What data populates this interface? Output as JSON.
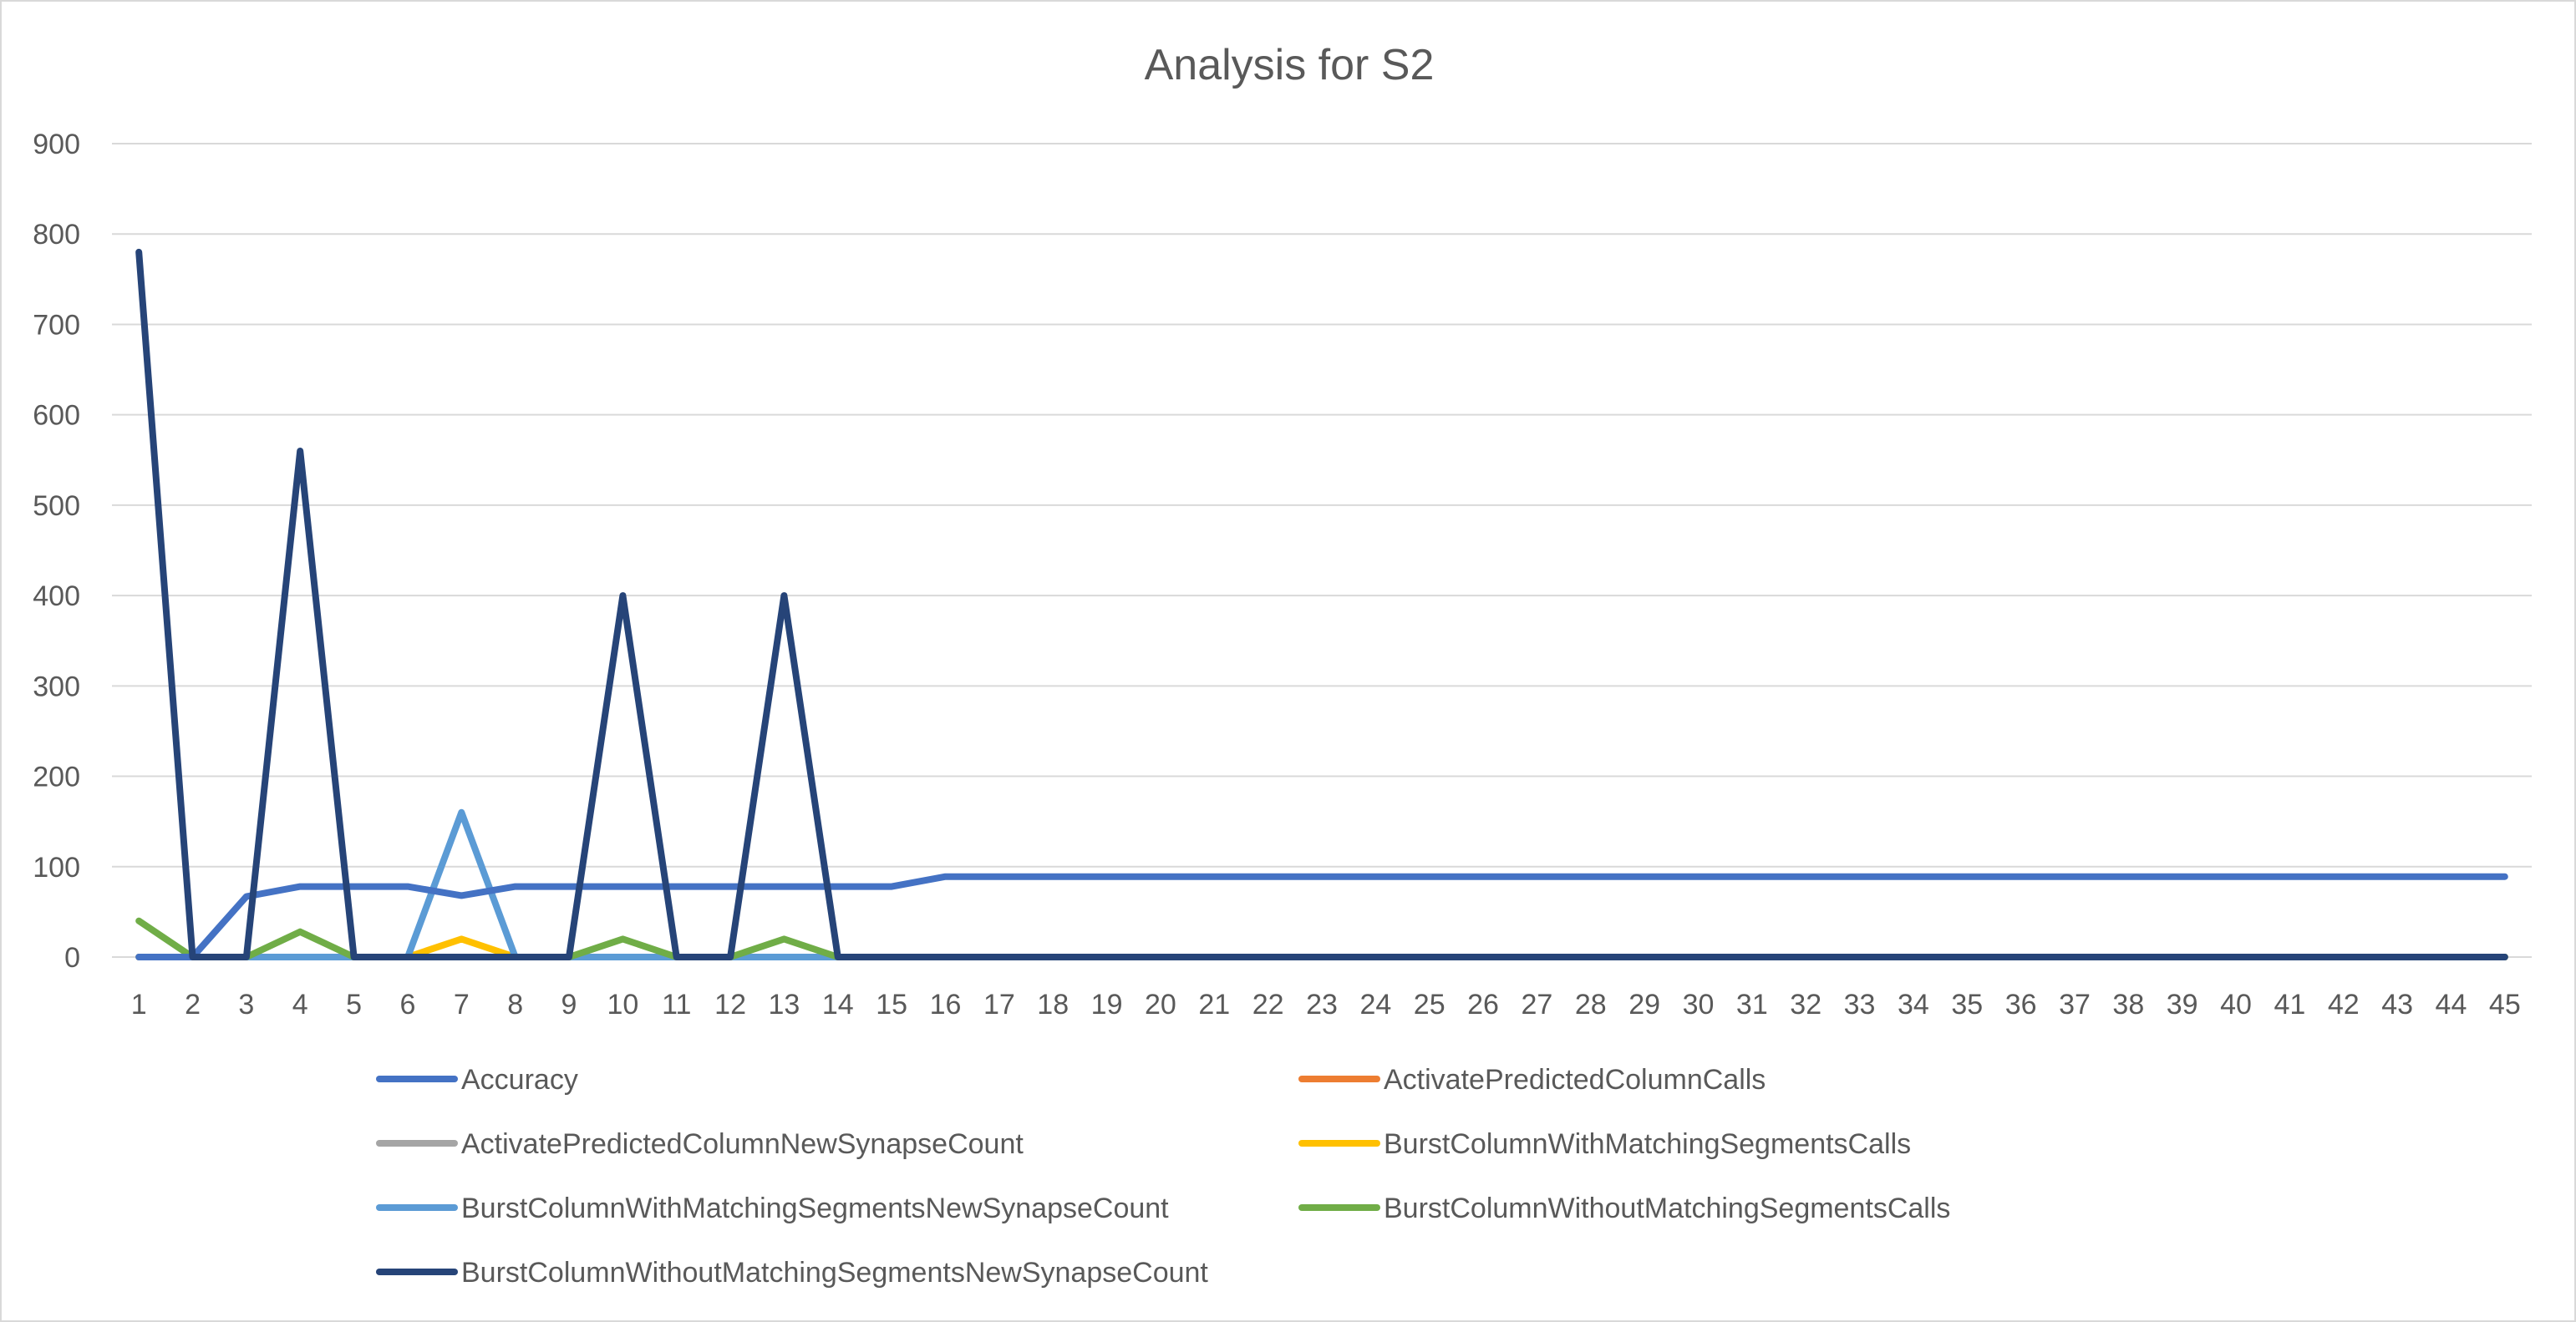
{
  "chart_data": {
    "type": "line",
    "title": "Analysis for S2",
    "xlabel": "",
    "ylabel": "",
    "ylim": [
      0,
      900
    ],
    "yticks": [
      "0",
      "100",
      "200",
      "300",
      "400",
      "500",
      "600",
      "700",
      "800",
      "900"
    ],
    "x": [
      1,
      2,
      3,
      4,
      5,
      6,
      7,
      8,
      9,
      10,
      11,
      12,
      13,
      14,
      15,
      16,
      17,
      18,
      19,
      20,
      21,
      22,
      23,
      24,
      25,
      26,
      27,
      28,
      29,
      30,
      31,
      32,
      33,
      34,
      35,
      36,
      37,
      38,
      39,
      40,
      41,
      42,
      43,
      44,
      45
    ],
    "grid": true,
    "legend_position": "bottom",
    "series": [
      {
        "name": "Accuracy",
        "color": "#4472C4",
        "values": [
          0,
          0,
          67,
          78,
          78,
          78,
          68,
          78,
          78,
          78,
          78,
          78,
          78,
          78,
          78,
          89,
          89,
          89,
          89,
          89,
          89,
          89,
          89,
          89,
          89,
          89,
          89,
          89,
          89,
          89,
          89,
          89,
          89,
          89,
          89,
          89,
          89,
          89,
          89,
          89,
          89,
          89,
          89,
          89,
          89
        ]
      },
      {
        "name": "ActivatePredictedColumnCalls",
        "color": "#ED7D31",
        "values": [
          0,
          0,
          0,
          0,
          0,
          0,
          0,
          0,
          0,
          0,
          0,
          0,
          0,
          0,
          0,
          0,
          0,
          0,
          0,
          0,
          0,
          0,
          0,
          0,
          0,
          0,
          0,
          0,
          0,
          0,
          0,
          0,
          0,
          0,
          0,
          0,
          0,
          0,
          0,
          0,
          0,
          0,
          0,
          0,
          0
        ]
      },
      {
        "name": "ActivatePredictedColumnNewSynapseCount",
        "color": "#A5A5A5",
        "values": [
          0,
          0,
          0,
          0,
          0,
          0,
          0,
          0,
          0,
          0,
          0,
          0,
          0,
          0,
          0,
          0,
          0,
          0,
          0,
          0,
          0,
          0,
          0,
          0,
          0,
          0,
          0,
          0,
          0,
          0,
          0,
          0,
          0,
          0,
          0,
          0,
          0,
          0,
          0,
          0,
          0,
          0,
          0,
          0,
          0
        ]
      },
      {
        "name": "BurstColumnWithMatchingSegmentsCalls",
        "color": "#FFC000",
        "values": [
          0,
          0,
          0,
          0,
          0,
          0,
          20,
          0,
          0,
          0,
          0,
          0,
          0,
          0,
          0,
          0,
          0,
          0,
          0,
          0,
          0,
          0,
          0,
          0,
          0,
          0,
          0,
          0,
          0,
          0,
          0,
          0,
          0,
          0,
          0,
          0,
          0,
          0,
          0,
          0,
          0,
          0,
          0,
          0,
          0
        ]
      },
      {
        "name": "BurstColumnWithMatchingSegmentsNewSynapseCount",
        "color": "#5B9BD5",
        "values": [
          0,
          0,
          0,
          0,
          0,
          0,
          160,
          0,
          0,
          0,
          0,
          0,
          0,
          0,
          0,
          0,
          0,
          0,
          0,
          0,
          0,
          0,
          0,
          0,
          0,
          0,
          0,
          0,
          0,
          0,
          0,
          0,
          0,
          0,
          0,
          0,
          0,
          0,
          0,
          0,
          0,
          0,
          0,
          0,
          0
        ]
      },
      {
        "name": "BurstColumnWithoutMatchingSegmentsCalls",
        "color": "#70AD47",
        "values": [
          40,
          0,
          0,
          28,
          0,
          0,
          0,
          0,
          0,
          20,
          0,
          0,
          20,
          0,
          0,
          0,
          0,
          0,
          0,
          0,
          0,
          0,
          0,
          0,
          0,
          0,
          0,
          0,
          0,
          0,
          0,
          0,
          0,
          0,
          0,
          0,
          0,
          0,
          0,
          0,
          0,
          0,
          0,
          0,
          0
        ]
      },
      {
        "name": "BurstColumnWithoutMatchingSegmentsNewSynapseCount",
        "color": "#264478",
        "values": [
          780,
          0,
          0,
          560,
          0,
          0,
          0,
          0,
          0,
          400,
          0,
          0,
          400,
          0,
          0,
          0,
          0,
          0,
          0,
          0,
          0,
          0,
          0,
          0,
          0,
          0,
          0,
          0,
          0,
          0,
          0,
          0,
          0,
          0,
          0,
          0,
          0,
          0,
          0,
          0,
          0,
          0,
          0,
          0,
          0
        ]
      }
    ]
  }
}
